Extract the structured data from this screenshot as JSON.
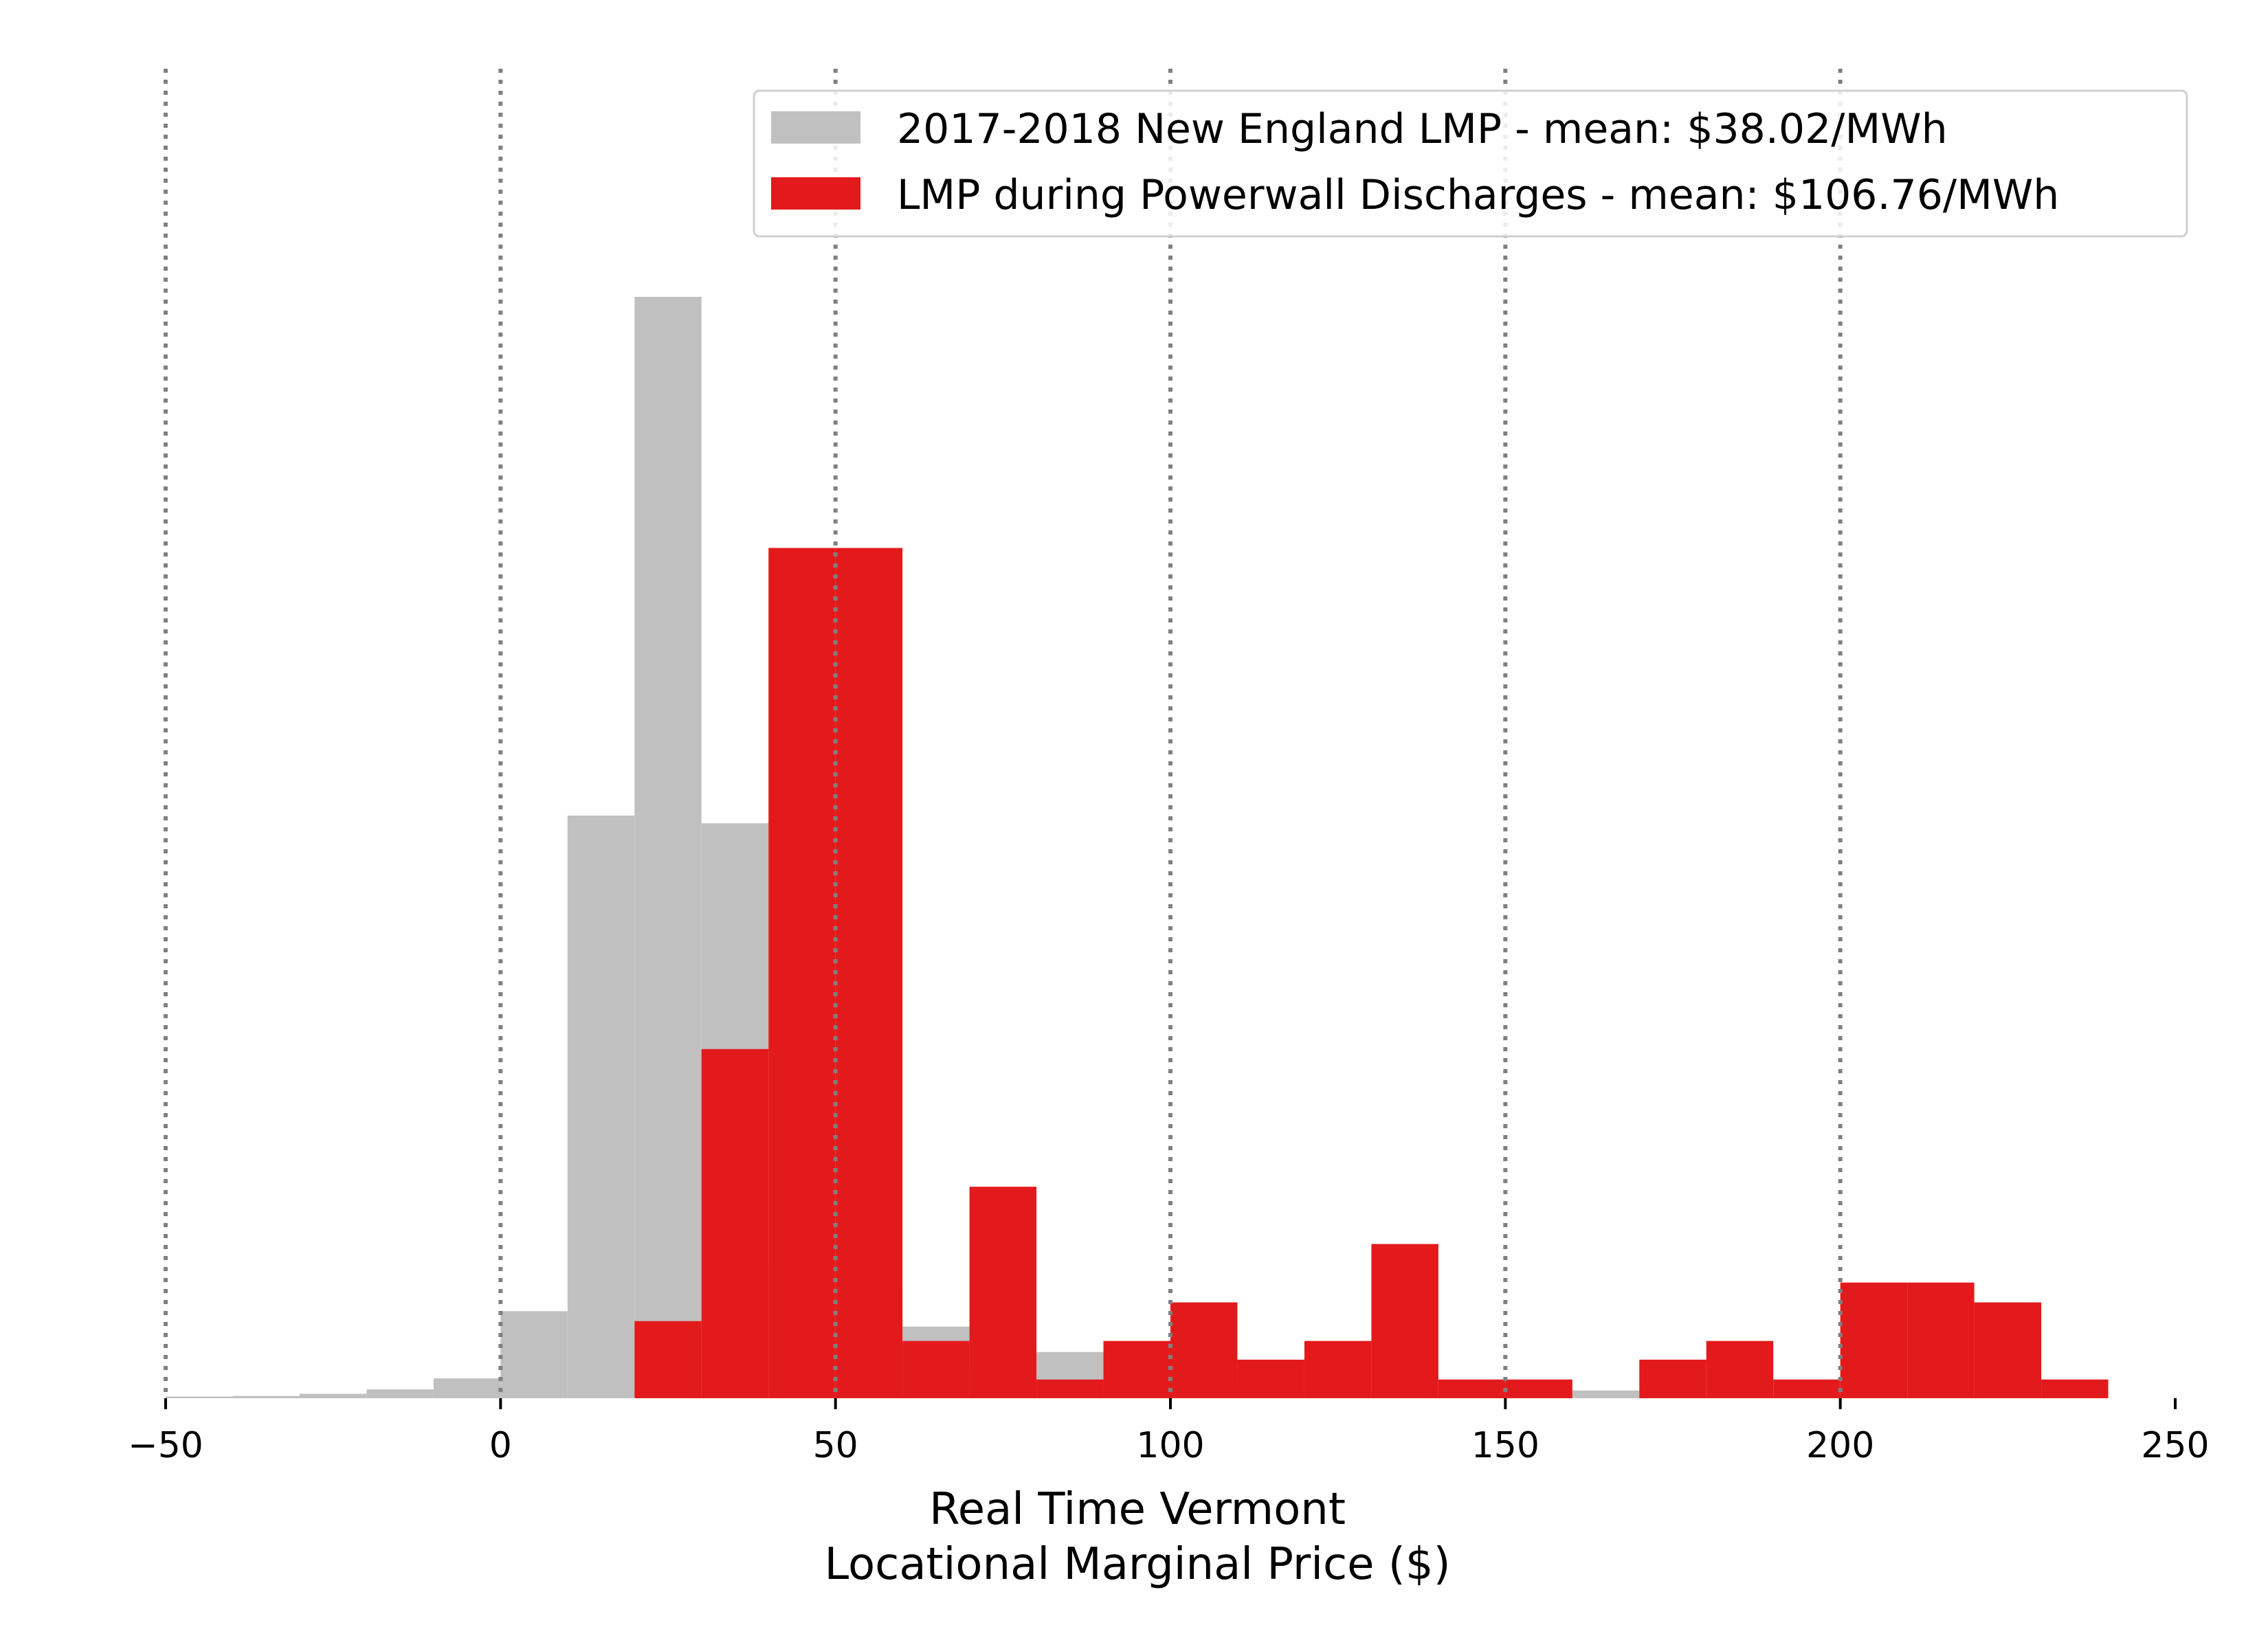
{
  "chart_data": {
    "type": "bar",
    "subtype": "histogram",
    "xlabel_lines": [
      "Real Time Vermont",
      "Locational Marginal Price ($)"
    ],
    "ylabel": "",
    "xlim": [
      -50,
      250
    ],
    "ylim": [
      0,
      1.0
    ],
    "xticks": [
      -50,
      0,
      50,
      100,
      150,
      200,
      250
    ],
    "xtick_labels": [
      "−50",
      "0",
      "50",
      "100",
      "150",
      "200",
      "250"
    ],
    "y_axis_visible": false,
    "gridlines_x": [
      -50,
      0,
      50,
      100,
      150,
      200
    ],
    "grid_style": "dotted",
    "legend_position": "top-right",
    "series": [
      {
        "name": "2017-2018 New England LMP - mean: $38.02/MWh",
        "color": "#c0c0c0",
        "bins": [
          {
            "x0": -50,
            "x1": -40,
            "value": 0.0015
          },
          {
            "x0": -40,
            "x1": -30,
            "value": 0.002
          },
          {
            "x0": -30,
            "x1": -20,
            "value": 0.004
          },
          {
            "x0": -20,
            "x1": -10,
            "value": 0.008
          },
          {
            "x0": -10,
            "x1": 0,
            "value": 0.018
          },
          {
            "x0": 0,
            "x1": 10,
            "value": 0.079
          },
          {
            "x0": 10,
            "x1": 20,
            "value": 0.529
          },
          {
            "x0": 20,
            "x1": 30,
            "value": 1.0
          },
          {
            "x0": 30,
            "x1": 40,
            "value": 0.522
          },
          {
            "x0": 40,
            "x1": 50,
            "value": 0.12
          },
          {
            "x0": 50,
            "x1": 60,
            "value": 0.1
          },
          {
            "x0": 60,
            "x1": 70,
            "value": 0.065
          },
          {
            "x0": 70,
            "x1": 80,
            "value": 0.03
          },
          {
            "x0": 80,
            "x1": 90,
            "value": 0.042
          },
          {
            "x0": 90,
            "x1": 100,
            "value": 0.015
          },
          {
            "x0": 100,
            "x1": 110,
            "value": 0.01
          },
          {
            "x0": 110,
            "x1": 120,
            "value": 0.008
          },
          {
            "x0": 120,
            "x1": 130,
            "value": 0.006
          },
          {
            "x0": 130,
            "x1": 140,
            "value": 0.005
          },
          {
            "x0": 140,
            "x1": 150,
            "value": 0.004
          },
          {
            "x0": 150,
            "x1": 160,
            "value": 0.004
          },
          {
            "x0": 160,
            "x1": 170,
            "value": 0.007
          },
          {
            "x0": 170,
            "x1": 180,
            "value": 0.003
          },
          {
            "x0": 180,
            "x1": 190,
            "value": 0.002
          },
          {
            "x0": 190,
            "x1": 200,
            "value": 0.002
          },
          {
            "x0": 200,
            "x1": 210,
            "value": 0.002
          },
          {
            "x0": 210,
            "x1": 220,
            "value": 0.001
          },
          {
            "x0": 220,
            "x1": 230,
            "value": 0.001
          },
          {
            "x0": 230,
            "x1": 240,
            "value": 0.001
          }
        ]
      },
      {
        "name": "LMP during Powerwall Discharges - mean: $106.76/MWh",
        "color": "#e31a1c",
        "bins": [
          {
            "x0": 20,
            "x1": 30,
            "value": 0.07
          },
          {
            "x0": 30,
            "x1": 40,
            "value": 0.317
          },
          {
            "x0": 40,
            "x1": 50,
            "value": 0.772
          },
          {
            "x0": 50,
            "x1": 60,
            "value": 0.772
          },
          {
            "x0": 60,
            "x1": 70,
            "value": 0.052
          },
          {
            "x0": 70,
            "x1": 80,
            "value": 0.192
          },
          {
            "x0": 80,
            "x1": 90,
            "value": 0.017
          },
          {
            "x0": 90,
            "x1": 100,
            "value": 0.052
          },
          {
            "x0": 100,
            "x1": 110,
            "value": 0.087
          },
          {
            "x0": 110,
            "x1": 120,
            "value": 0.035
          },
          {
            "x0": 120,
            "x1": 130,
            "value": 0.052
          },
          {
            "x0": 130,
            "x1": 140,
            "value": 0.14
          },
          {
            "x0": 140,
            "x1": 150,
            "value": 0.017
          },
          {
            "x0": 150,
            "x1": 160,
            "value": 0.017
          },
          {
            "x0": 170,
            "x1": 180,
            "value": 0.035
          },
          {
            "x0": 180,
            "x1": 190,
            "value": 0.052
          },
          {
            "x0": 190,
            "x1": 200,
            "value": 0.017
          },
          {
            "x0": 200,
            "x1": 210,
            "value": 0.105
          },
          {
            "x0": 210,
            "x1": 220,
            "value": 0.105
          },
          {
            "x0": 220,
            "x1": 230,
            "value": 0.087
          },
          {
            "x0": 230,
            "x1": 240,
            "value": 0.017
          }
        ]
      }
    ]
  }
}
